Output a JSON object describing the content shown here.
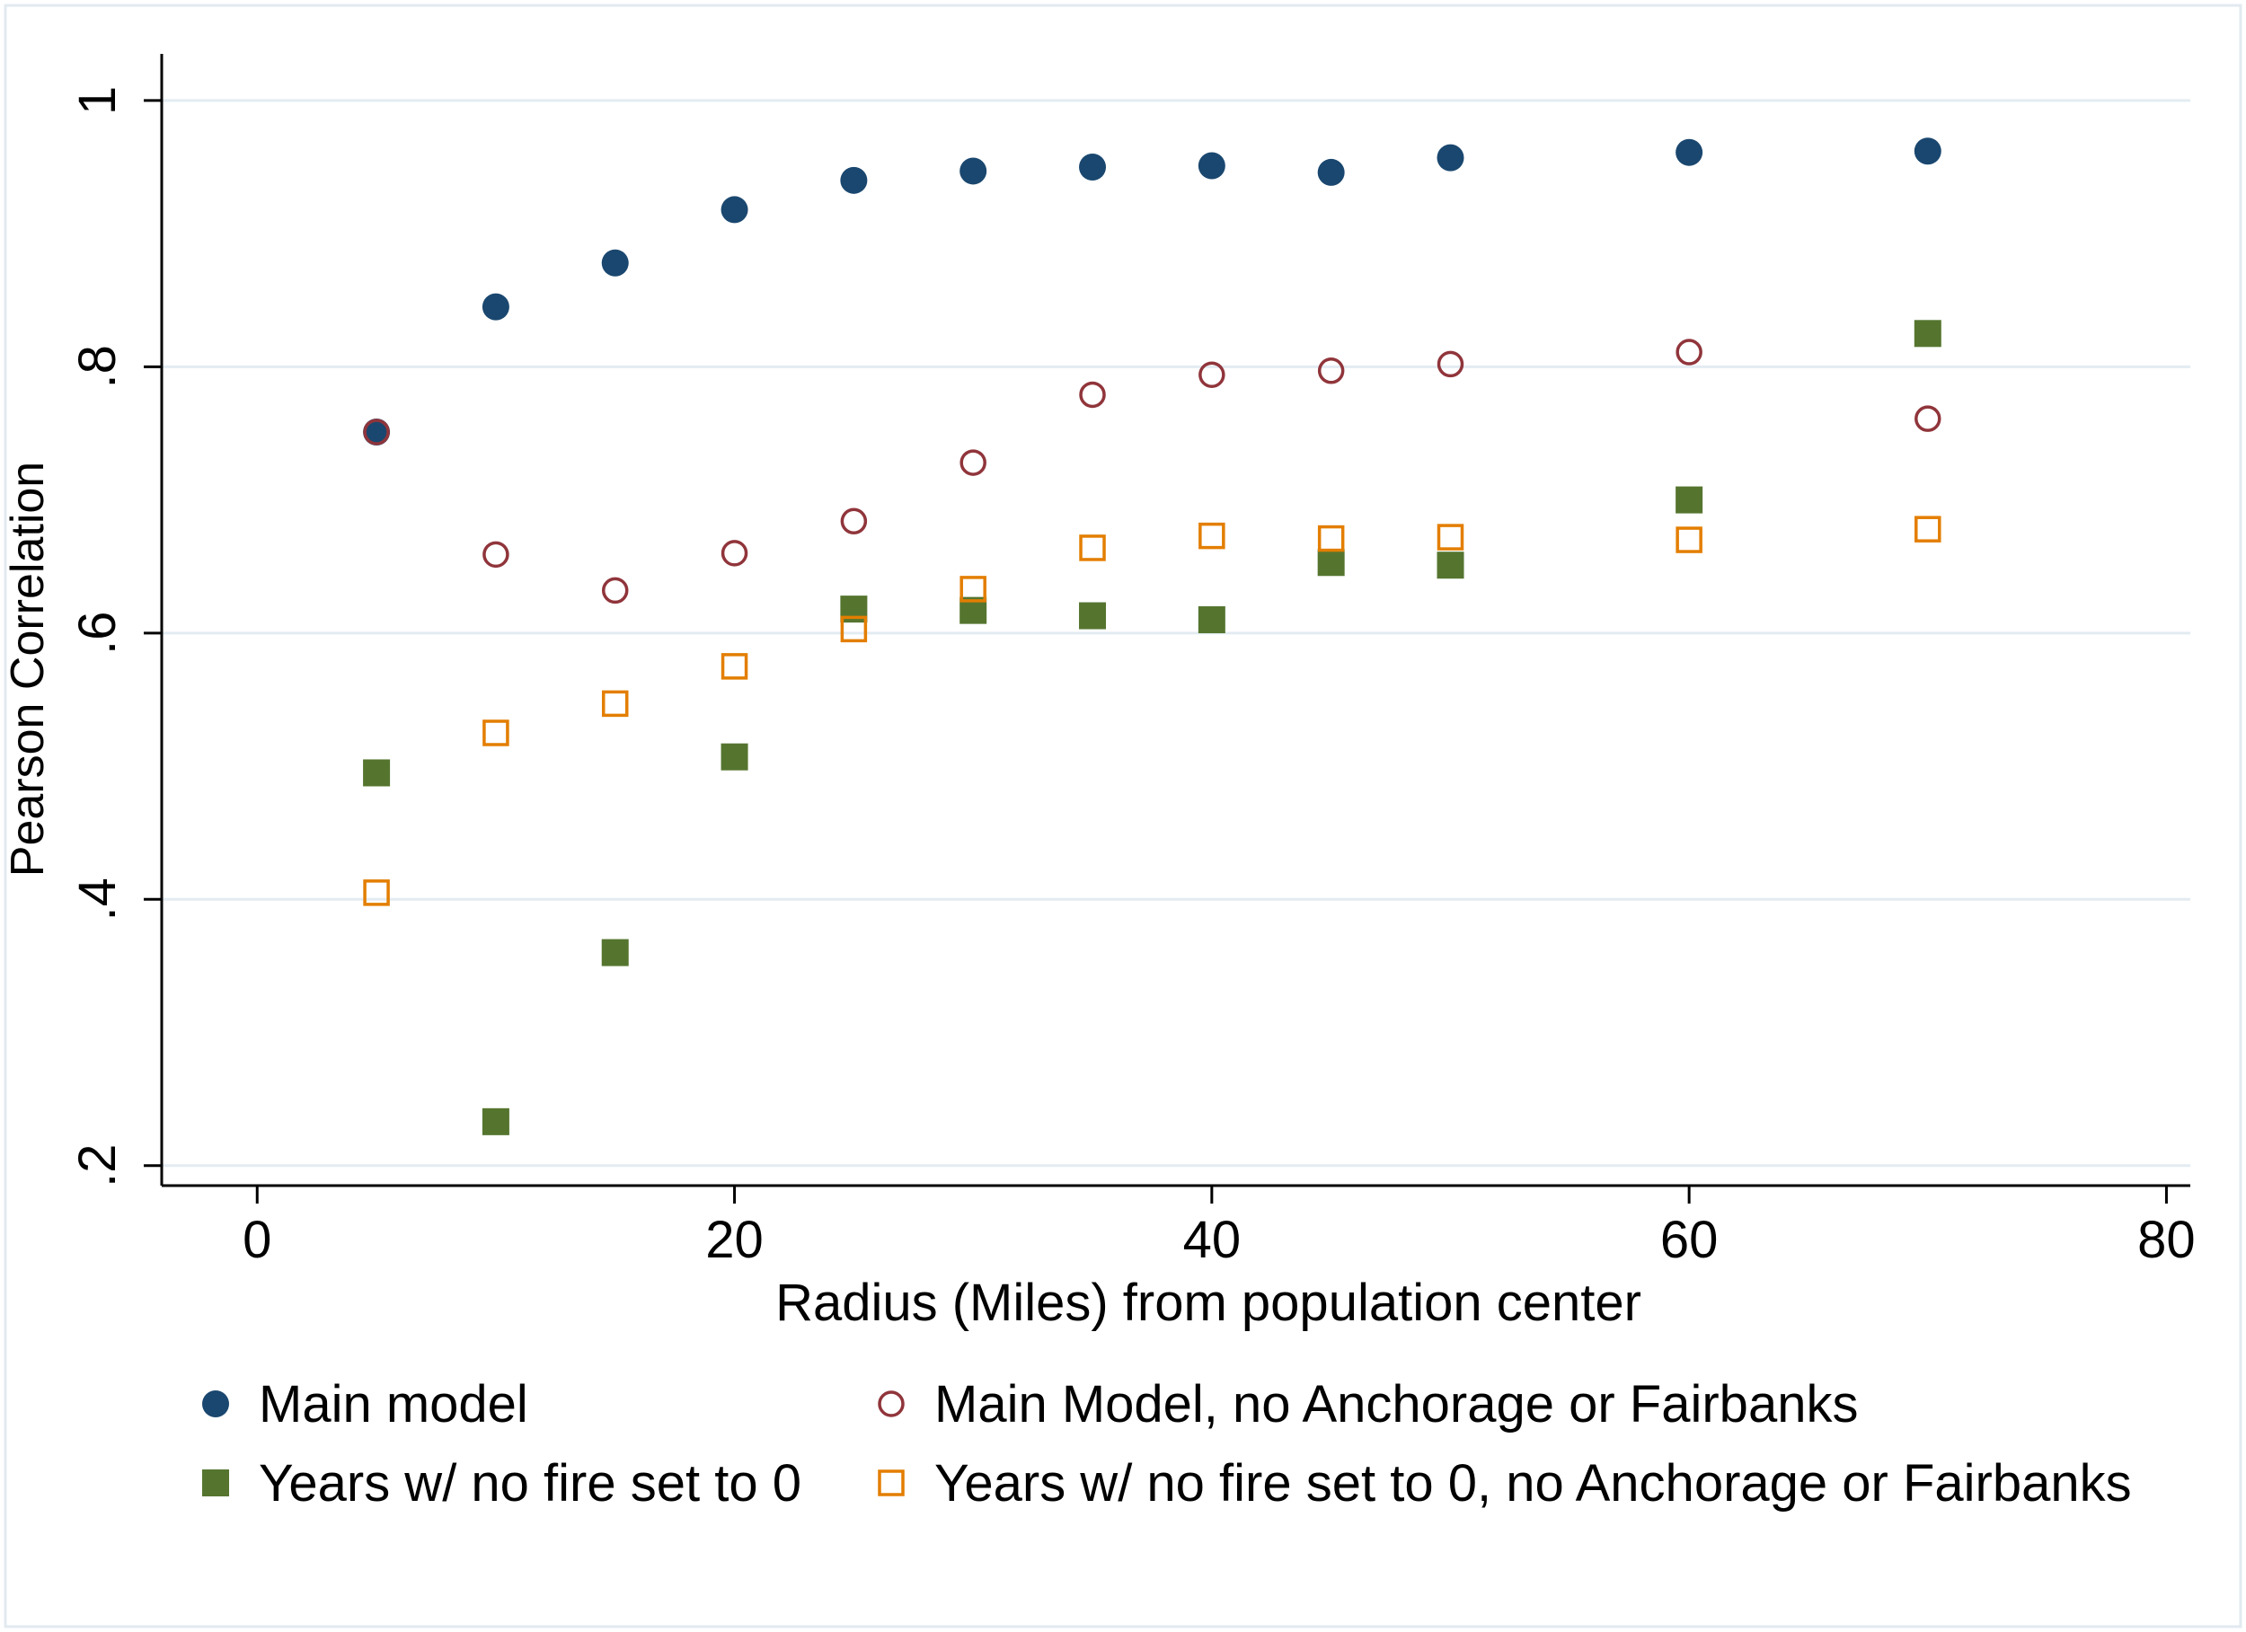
{
  "chart_data": {
    "type": "scatter",
    "title": "",
    "xlabel": "Radius (Miles) from population center",
    "ylabel": "Pearson Correlation",
    "xlim": [
      -4,
      81
    ],
    "ylim": [
      0.185,
      1.035
    ],
    "x_ticks": [
      0,
      20,
      40,
      60,
      80
    ],
    "x_tick_labels": [
      "0",
      "20",
      "40",
      "60",
      "80"
    ],
    "y_ticks": [
      0.2,
      0.4,
      0.6,
      0.8,
      1
    ],
    "y_tick_labels": [
      ".2",
      ".4",
      ".6",
      ".8",
      "1"
    ],
    "grid": true,
    "legend_position": "bottom",
    "series": [
      {
        "name": "Main model",
        "marker": "filled-circle",
        "color": "#1a476f",
        "x": [
          5,
          10,
          15,
          20,
          25,
          30,
          35,
          40,
          45,
          50,
          60,
          70
        ],
        "y": [
          0.751,
          0.845,
          0.878,
          0.918,
          0.94,
          0.947,
          0.95,
          0.951,
          0.946,
          0.957,
          0.961,
          0.962
        ]
      },
      {
        "name": "Main Model, no Anchorage or Fairbanks",
        "marker": "hollow-circle",
        "color": "#90353b",
        "x": [
          5,
          10,
          15,
          20,
          25,
          30,
          35,
          40,
          45,
          50,
          60,
          70
        ],
        "y": [
          0.751,
          0.659,
          0.632,
          0.66,
          0.684,
          0.728,
          0.779,
          0.794,
          0.797,
          0.802,
          0.811,
          0.761
        ]
      },
      {
        "name": "Years w/ no fire set to 0",
        "marker": "filled-square",
        "color": "#55752f",
        "x": [
          5,
          10,
          15,
          20,
          25,
          30,
          35,
          40,
          45,
          50,
          60,
          70
        ],
        "y": [
          0.495,
          0.233,
          0.36,
          0.507,
          0.618,
          0.617,
          0.613,
          0.61,
          0.653,
          0.651,
          0.7,
          0.825
        ]
      },
      {
        "name": "Years w/ no fire set to 0, no Anchorage or Fairbanks",
        "marker": "hollow-square",
        "color": "#e37e00",
        "x": [
          5,
          10,
          15,
          20,
          25,
          30,
          35,
          40,
          45,
          50,
          60,
          70
        ],
        "y": [
          0.405,
          0.525,
          0.547,
          0.575,
          0.603,
          0.633,
          0.664,
          0.673,
          0.671,
          0.672,
          0.67,
          0.678
        ]
      }
    ]
  }
}
